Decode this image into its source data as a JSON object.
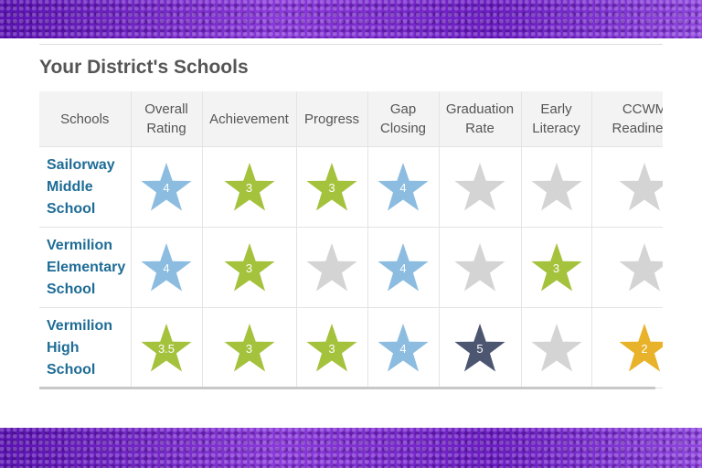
{
  "title": "Your District's Schools",
  "headers": [
    "Schools",
    "Overall Rating",
    "Achievement",
    "Progress",
    "Gap Closing",
    "Graduation Rate",
    "Early Literacy",
    "CCWM Readiness"
  ],
  "header_lines": [
    [
      "Schools"
    ],
    [
      "Overall",
      "Rating"
    ],
    [
      "Achievement"
    ],
    [
      "Progress"
    ],
    [
      "Gap",
      "Closing"
    ],
    [
      "Graduation",
      "Rate"
    ],
    [
      "Early",
      "Literacy"
    ],
    [
      "CCWM",
      "Readiness"
    ]
  ],
  "colors": {
    "blue": "#8cbde1",
    "green": "#a4c23c",
    "gray": "#d4d4d4",
    "navy": "#4d5670",
    "gold": "#e8b32a"
  },
  "rows": [
    {
      "school": [
        "Sailorway",
        "Middle",
        "School"
      ],
      "ratings": [
        {
          "value": "4",
          "color": "blue"
        },
        {
          "value": "3",
          "color": "green"
        },
        {
          "value": "3",
          "color": "green"
        },
        {
          "value": "4",
          "color": "blue"
        },
        {
          "value": "",
          "color": "gray"
        },
        {
          "value": "",
          "color": "gray"
        },
        {
          "value": "",
          "color": "gray"
        }
      ]
    },
    {
      "school": [
        "Vermilion",
        "Elementary",
        "School"
      ],
      "ratings": [
        {
          "value": "4",
          "color": "blue"
        },
        {
          "value": "3",
          "color": "green"
        },
        {
          "value": "",
          "color": "gray"
        },
        {
          "value": "4",
          "color": "blue"
        },
        {
          "value": "",
          "color": "gray"
        },
        {
          "value": "3",
          "color": "green"
        },
        {
          "value": "",
          "color": "gray"
        }
      ]
    },
    {
      "school": [
        "Vermilion",
        "High",
        "School"
      ],
      "ratings": [
        {
          "value": "3.5",
          "color": "green"
        },
        {
          "value": "3",
          "color": "green"
        },
        {
          "value": "3",
          "color": "green"
        },
        {
          "value": "4",
          "color": "blue"
        },
        {
          "value": "5",
          "color": "navy"
        },
        {
          "value": "",
          "color": "gray"
        },
        {
          "value": "2",
          "color": "gold"
        }
      ]
    }
  ]
}
